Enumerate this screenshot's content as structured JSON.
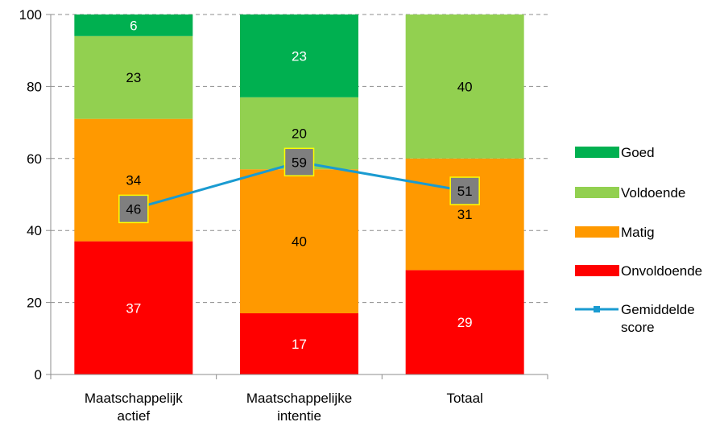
{
  "chart_data": {
    "type": "bar",
    "stacked": true,
    "categories": [
      "Maatschappelijk actief",
      "Maatschappelijke intentie",
      "Totaal"
    ],
    "ylim": [
      0,
      100
    ],
    "yticks": [
      0,
      20,
      40,
      60,
      80,
      100
    ],
    "grid": true,
    "legend_position": "right",
    "series": [
      {
        "name": "Onvoldoende",
        "values": [
          37,
          17,
          29
        ],
        "color": "#ff0000",
        "label_color": "#ffffff"
      },
      {
        "name": "Matig",
        "values": [
          34,
          40,
          31
        ],
        "color": "#ff9900",
        "label_color": "#000000"
      },
      {
        "name": "Voldoende",
        "values": [
          23,
          20,
          40
        ],
        "color": "#92d050",
        "label_color": "#000000"
      },
      {
        "name": "Goed",
        "values": [
          6,
          23,
          0
        ],
        "color": "#00b050",
        "label_color": "#ffffff"
      }
    ],
    "line_series": {
      "name": "Gemiddelde score",
      "values": [
        46,
        59,
        51
      ],
      "color": "#1a9bd1",
      "marker_label_fill": "#7f7f7f",
      "marker_label_border": "#ffff00"
    },
    "category_labels": [
      [
        "Maatschappelijk",
        "actief"
      ],
      [
        "Maatschappelijke",
        "intentie"
      ],
      [
        "Totaal"
      ]
    ],
    "legend_labels": [
      {
        "series": "Goed",
        "lines": [
          "Goed"
        ]
      },
      {
        "series": "Voldoende",
        "lines": [
          "Voldoende"
        ]
      },
      {
        "series": "Matig",
        "lines": [
          "Matig"
        ]
      },
      {
        "series": "Onvoldoende",
        "lines": [
          "Onvoldoende"
        ]
      },
      {
        "series": "Gemiddelde score",
        "lines": [
          "Gemiddelde",
          "score"
        ]
      }
    ]
  }
}
